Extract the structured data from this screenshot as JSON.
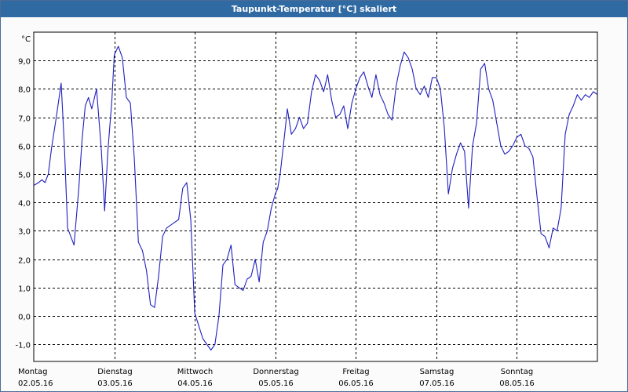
{
  "window": {
    "title": "Taupunkt-Temperatur [°C] skaliert"
  },
  "chart_data": {
    "type": "line",
    "title": "Taupunkt-Temperatur [°C] skaliert",
    "ylabel": "°C",
    "xlabel": "",
    "ylim": [
      -1.6,
      10.0
    ],
    "xlim": [
      0,
      7
    ],
    "yticks": [
      "-1,0",
      "0,0",
      "1,0",
      "2,0",
      "3,0",
      "4,0",
      "5,0",
      "6,0",
      "7,0",
      "8,0",
      "9,0"
    ],
    "ytick_values": [
      -1,
      0,
      1,
      2,
      3,
      4,
      5,
      6,
      7,
      8,
      9
    ],
    "xticks": [
      {
        "day": "Montag",
        "date": "02.05.16",
        "x": 0
      },
      {
        "day": "Dienstag",
        "date": "03.05.16",
        "x": 1
      },
      {
        "day": "Mittwoch",
        "date": "04.05.16",
        "x": 2
      },
      {
        "day": "Donnerstag",
        "date": "05.05.16",
        "x": 3
      },
      {
        "day": "Freitag",
        "date": "06.05.16",
        "x": 4
      },
      {
        "day": "Samstag",
        "date": "07.05.16",
        "x": 5
      },
      {
        "day": "Sonntag",
        "date": "08.05.16",
        "x": 6
      }
    ],
    "grid": true,
    "series": [
      {
        "color": "#1f1fbf",
        "x": [
          0.0,
          0.06,
          0.1,
          0.14,
          0.18,
          0.22,
          0.28,
          0.34,
          0.38,
          0.42,
          0.5,
          0.56,
          0.6,
          0.64,
          0.68,
          0.72,
          0.78,
          0.84,
          0.88,
          0.92,
          0.97,
          1.0,
          1.05,
          1.1,
          1.15,
          1.2,
          1.25,
          1.3,
          1.35,
          1.4,
          1.45,
          1.5,
          1.55,
          1.6,
          1.65,
          1.7,
          1.75,
          1.8,
          1.85,
          1.9,
          1.95,
          2.0,
          2.1,
          2.2,
          2.25,
          2.3,
          2.35,
          2.4,
          2.45,
          2.5,
          2.55,
          2.6,
          2.65,
          2.7,
          2.75,
          2.8,
          2.85,
          2.9,
          2.95,
          3.0,
          3.03,
          3.06,
          3.1,
          3.15,
          3.2,
          3.25,
          3.3,
          3.35,
          3.4,
          3.45,
          3.5,
          3.55,
          3.6,
          3.65,
          3.7,
          3.75,
          3.8,
          3.85,
          3.9,
          3.95,
          4.0,
          4.05,
          4.1,
          4.15,
          4.2,
          4.25,
          4.3,
          4.35,
          4.4,
          4.45,
          4.5,
          4.55,
          4.6,
          4.65,
          4.7,
          4.75,
          4.8,
          4.85,
          4.9,
          4.95,
          5.0,
          5.05,
          5.1,
          5.15,
          5.2,
          5.25,
          5.3,
          5.35,
          5.4,
          5.45,
          5.5,
          5.55,
          5.6,
          5.65,
          5.7,
          5.75,
          5.8,
          5.85,
          5.9,
          5.95,
          6.0,
          6.05,
          6.1,
          6.15,
          6.2,
          6.25,
          6.3,
          6.35,
          6.4,
          6.45,
          6.5,
          6.55,
          6.6,
          6.65,
          6.7,
          6.75,
          6.8,
          6.85,
          6.9,
          6.95,
          7.0
        ],
        "y": [
          4.6,
          4.7,
          4.8,
          4.7,
          5.0,
          5.9,
          7.0,
          8.2,
          6.0,
          3.1,
          2.5,
          4.5,
          6.2,
          7.4,
          7.7,
          7.3,
          8.0,
          5.8,
          3.7,
          5.8,
          7.6,
          9.2,
          9.5,
          9.1,
          7.7,
          7.5,
          5.5,
          2.6,
          2.3,
          1.6,
          0.4,
          0.3,
          1.4,
          2.8,
          3.1,
          3.2,
          3.3,
          3.4,
          4.5,
          4.7,
          3.4,
          0.1,
          -0.8,
          -1.2,
          -1.0,
          0.0,
          1.8,
          2.0,
          2.5,
          1.1,
          1.0,
          0.9,
          1.3,
          1.4,
          2.0,
          1.2,
          2.6,
          3.0,
          3.8,
          4.3,
          4.5,
          5.0,
          6.0,
          7.3,
          6.4,
          6.6,
          7.0,
          6.6,
          6.8,
          7.9,
          8.5,
          8.3,
          7.9,
          8.5,
          7.6,
          7.0,
          7.1,
          7.4,
          6.6,
          7.5,
          8.0,
          8.4,
          8.6,
          8.1,
          7.7,
          8.5,
          7.8,
          7.5,
          7.1,
          6.9,
          8.1,
          8.8,
          9.3,
          9.1,
          8.7,
          8.0,
          7.8,
          8.1,
          7.7,
          8.4,
          8.4,
          8.0,
          6.6,
          4.3,
          5.2,
          5.7,
          6.1,
          5.8,
          3.8,
          6.0,
          6.8,
          8.7,
          8.9,
          8.0,
          7.6,
          6.8,
          6.0,
          5.7,
          5.8,
          6.0,
          6.3,
          6.4,
          6.0,
          5.9,
          5.6,
          4.2,
          2.9,
          2.8,
          2.4,
          3.1,
          3.0,
          3.8,
          6.4,
          7.1,
          7.4,
          7.8,
          7.6,
          7.8,
          7.7,
          7.9,
          7.8
        ]
      }
    ]
  }
}
